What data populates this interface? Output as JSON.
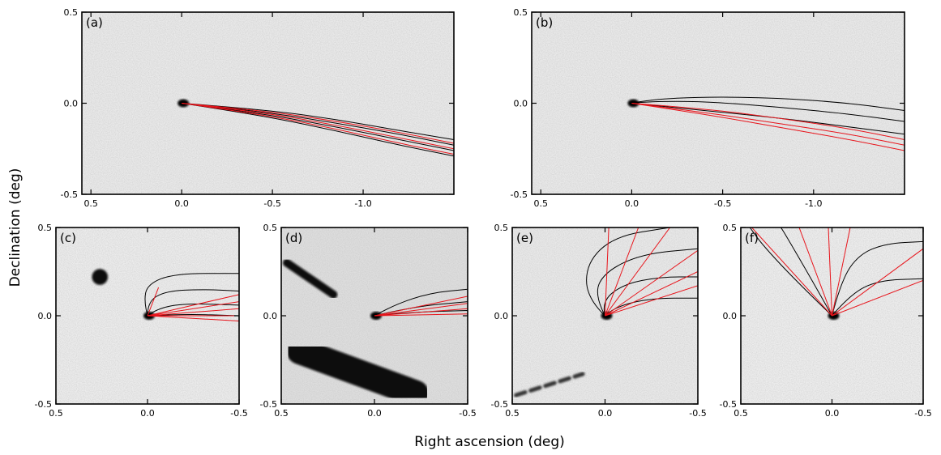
{
  "figure": {
    "xlabel": "Right ascension (deg)",
    "ylabel": "Declination (deg)"
  },
  "colors": {
    "syndyne": "#000000",
    "synchrone": "#e8141b",
    "background": "#e6e6e6",
    "nucleus": "#000000"
  },
  "chart_data": [
    {
      "panel": "(a)",
      "type": "line",
      "xlim": [
        0.55,
        -1.5
      ],
      "ylim": [
        -0.5,
        0.5
      ],
      "xticks": [
        0.5,
        0.0,
        -0.5,
        -1.0
      ],
      "xtick_labels": [
        "0.5",
        "0.0",
        "-0.5",
        "-1.0"
      ],
      "yticks": [
        0.5,
        0.0,
        -0.5
      ],
      "ytick_labels": [
        "0.5",
        "0.0",
        "-0.5"
      ],
      "syndynes": [
        [
          [
            0,
            0
          ],
          [
            -0.4,
            -0.03
          ],
          [
            -0.8,
            -0.08
          ],
          [
            -1.2,
            -0.15
          ],
          [
            -1.5,
            -0.2
          ]
        ],
        [
          [
            0,
            0
          ],
          [
            -0.4,
            -0.04
          ],
          [
            -0.8,
            -0.1
          ],
          [
            -1.2,
            -0.17
          ],
          [
            -1.5,
            -0.23
          ]
        ],
        [
          [
            0,
            0
          ],
          [
            -0.4,
            -0.05
          ],
          [
            -0.8,
            -0.12
          ],
          [
            -1.2,
            -0.2
          ],
          [
            -1.5,
            -0.26
          ]
        ],
        [
          [
            0,
            0
          ],
          [
            -0.4,
            -0.06
          ],
          [
            -0.8,
            -0.14
          ],
          [
            -1.2,
            -0.23
          ],
          [
            -1.5,
            -0.29
          ]
        ]
      ],
      "synchrones": [
        [
          [
            0,
            0
          ],
          [
            -0.4,
            -0.035
          ],
          [
            -0.8,
            -0.09
          ],
          [
            -1.2,
            -0.16
          ],
          [
            -1.5,
            -0.22
          ]
        ],
        [
          [
            0,
            0
          ],
          [
            -0.4,
            -0.045
          ],
          [
            -0.8,
            -0.11
          ],
          [
            -1.2,
            -0.19
          ],
          [
            -1.5,
            -0.25
          ]
        ],
        [
          [
            0,
            0
          ],
          [
            -0.4,
            -0.055
          ],
          [
            -0.8,
            -0.13
          ],
          [
            -1.2,
            -0.22
          ],
          [
            -1.5,
            -0.28
          ]
        ]
      ]
    },
    {
      "panel": "(b)",
      "type": "line",
      "xlim": [
        0.55,
        -1.5
      ],
      "ylim": [
        -0.5,
        0.5
      ],
      "xticks": [
        0.5,
        0.0,
        -0.5,
        -1.0
      ],
      "xtick_labels": [
        "0.5",
        "0.0",
        "-0.5",
        "-1.0"
      ],
      "yticks": [
        0.5,
        0.0,
        -0.5
      ],
      "ytick_labels": [
        "0.5",
        "0.0",
        "-0.5"
      ],
      "syndynes": [
        [
          [
            0,
            0
          ],
          [
            -0.1,
            0.02
          ],
          [
            -0.4,
            0.035
          ],
          [
            -0.8,
            0.03
          ],
          [
            -1.2,
            0.0
          ],
          [
            -1.5,
            -0.04
          ]
        ],
        [
          [
            0,
            0
          ],
          [
            -0.1,
            0.01
          ],
          [
            -0.4,
            0.01
          ],
          [
            -0.8,
            -0.02
          ],
          [
            -1.2,
            -0.06
          ],
          [
            -1.5,
            -0.1
          ]
        ],
        [
          [
            0,
            0
          ],
          [
            -0.3,
            -0.03
          ],
          [
            -0.8,
            -0.08
          ],
          [
            -1.2,
            -0.13
          ],
          [
            -1.5,
            -0.17
          ]
        ]
      ],
      "synchrones": [
        [
          [
            0,
            0
          ],
          [
            -0.4,
            -0.03
          ],
          [
            -0.8,
            -0.08
          ],
          [
            -1.2,
            -0.14
          ],
          [
            -1.5,
            -0.2
          ]
        ],
        [
          [
            0,
            0
          ],
          [
            -0.4,
            -0.05
          ],
          [
            -0.8,
            -0.11
          ],
          [
            -1.2,
            -0.17
          ],
          [
            -1.5,
            -0.23
          ]
        ],
        [
          [
            0,
            0
          ],
          [
            -0.4,
            -0.06
          ],
          [
            -0.8,
            -0.13
          ],
          [
            -1.2,
            -0.2
          ],
          [
            -1.5,
            -0.26
          ]
        ]
      ]
    },
    {
      "panel": "(c)",
      "type": "line",
      "xlim": [
        0.5,
        -0.5
      ],
      "ylim": [
        -0.5,
        0.5
      ],
      "xticks": [
        0.5,
        0.0,
        -0.5
      ],
      "xtick_labels": [
        "0.5",
        "0.0",
        "-0.5"
      ],
      "yticks": [
        0.5,
        0.0,
        -0.5
      ],
      "ytick_labels": [
        "0.5",
        "0.0",
        "-0.5"
      ],
      "syndynes": [
        [
          [
            0,
            0
          ],
          [
            0.02,
            0.08
          ],
          [
            0.0,
            0.18
          ],
          [
            -0.15,
            0.24
          ],
          [
            -0.5,
            0.24
          ]
        ],
        [
          [
            0,
            0
          ],
          [
            0.0,
            0.08
          ],
          [
            -0.1,
            0.14
          ],
          [
            -0.3,
            0.15
          ],
          [
            -0.5,
            0.14
          ]
        ],
        [
          [
            0,
            0
          ],
          [
            -0.05,
            0.04
          ],
          [
            -0.2,
            0.07
          ],
          [
            -0.5,
            0.06
          ]
        ],
        [
          [
            0,
            0
          ],
          [
            -0.2,
            0.01
          ],
          [
            -0.5,
            0.0
          ]
        ]
      ],
      "synchrones": [
        [
          [
            0,
            0
          ],
          [
            -0.06,
            0.16
          ]
        ],
        [
          [
            0,
            0
          ],
          [
            -0.5,
            0.12
          ]
        ],
        [
          [
            0,
            0
          ],
          [
            -0.5,
            0.08
          ]
        ],
        [
          [
            0,
            0
          ],
          [
            -0.5,
            0.04
          ]
        ],
        [
          [
            0,
            0
          ],
          [
            -0.5,
            0.0
          ]
        ],
        [
          [
            0,
            0
          ],
          [
            -0.5,
            -0.03
          ]
        ]
      ],
      "features": [
        {
          "kind": "blob",
          "x": 0.26,
          "y": 0.22,
          "r": 0.045
        }
      ]
    },
    {
      "panel": "(d)",
      "type": "line",
      "xlim": [
        0.5,
        -0.5
      ],
      "ylim": [
        -0.5,
        0.5
      ],
      "xticks": [
        0.5,
        0.0,
        -0.5
      ],
      "xtick_labels": [
        "0.5",
        "0.0",
        "-0.5"
      ],
      "yticks": [
        0.5,
        0.0,
        -0.5
      ],
      "ytick_labels": [
        "0.5",
        "0.0",
        "-0.5"
      ],
      "syndynes": [
        [
          [
            0,
            0
          ],
          [
            -0.1,
            0.06
          ],
          [
            -0.3,
            0.13
          ],
          [
            -0.5,
            0.15
          ]
        ],
        [
          [
            0,
            0
          ],
          [
            -0.2,
            0.05
          ],
          [
            -0.5,
            0.08
          ]
        ],
        [
          [
            0,
            0
          ],
          [
            -0.2,
            0.02
          ],
          [
            -0.5,
            0.03
          ]
        ]
      ],
      "synchrones": [
        [
          [
            0,
            0
          ],
          [
            -0.5,
            0.11
          ]
        ],
        [
          [
            0,
            0
          ],
          [
            -0.5,
            0.07
          ]
        ],
        [
          [
            0,
            0
          ],
          [
            -0.5,
            0.04
          ]
        ],
        [
          [
            0,
            0
          ],
          [
            -0.5,
            0.01
          ]
        ]
      ],
      "features": [
        {
          "kind": "streak",
          "x1": 0.47,
          "y1": 0.3,
          "x2": 0.22,
          "y2": 0.12,
          "w": 0.045
        },
        {
          "kind": "streak",
          "x1": 0.4,
          "y1": -0.2,
          "x2": -0.22,
          "y2": -0.44,
          "w": 0.15
        }
      ]
    },
    {
      "panel": "(e)",
      "type": "line",
      "xlim": [
        0.5,
        -0.5
      ],
      "ylim": [
        -0.5,
        0.5
      ],
      "xticks": [
        0.5,
        0.0,
        -0.5
      ],
      "xtick_labels": [
        "0.5",
        "0.0",
        "-0.5"
      ],
      "yticks": [
        0.5,
        0.0,
        -0.5
      ],
      "ytick_labels": [
        "0.5",
        "0.0",
        "-0.5"
      ],
      "syndynes": [
        [
          [
            0,
            0
          ],
          [
            0.1,
            0.1
          ],
          [
            0.1,
            0.3
          ],
          [
            -0.05,
            0.45
          ],
          [
            -0.35,
            0.5
          ]
        ],
        [
          [
            0,
            0
          ],
          [
            0.06,
            0.12
          ],
          [
            0.0,
            0.25
          ],
          [
            -0.2,
            0.35
          ],
          [
            -0.5,
            0.38
          ]
        ],
        [
          [
            0,
            0
          ],
          [
            0.02,
            0.08
          ],
          [
            -0.1,
            0.18
          ],
          [
            -0.3,
            0.22
          ],
          [
            -0.5,
            0.22
          ]
        ],
        [
          [
            0,
            0
          ],
          [
            -0.05,
            0.05
          ],
          [
            -0.25,
            0.1
          ],
          [
            -0.5,
            0.1
          ]
        ]
      ],
      "synchrones": [
        [
          [
            0,
            0
          ],
          [
            -0.02,
            0.5
          ]
        ],
        [
          [
            0,
            0
          ],
          [
            -0.18,
            0.5
          ]
        ],
        [
          [
            0,
            0
          ],
          [
            -0.35,
            0.5
          ]
        ],
        [
          [
            0,
            0
          ],
          [
            -0.5,
            0.37
          ]
        ],
        [
          [
            0,
            0
          ],
          [
            -0.5,
            0.25
          ]
        ],
        [
          [
            0,
            0
          ],
          [
            -0.5,
            0.17
          ]
        ]
      ],
      "features": [
        {
          "kind": "dashes",
          "x1": 0.48,
          "y1": -0.45,
          "x2": 0.12,
          "y2": -0.33
        }
      ]
    },
    {
      "panel": "(f)",
      "type": "line",
      "xlim": [
        0.5,
        -0.5
      ],
      "ylim": [
        -0.5,
        0.5
      ],
      "xticks": [
        0.5,
        0.0,
        -0.5
      ],
      "xtick_labels": [
        "0.5",
        "0.0",
        "-0.5"
      ],
      "yticks": [
        0.5,
        0.0,
        -0.5
      ],
      "ytick_labels": [
        "0.5",
        "0.0",
        "-0.5"
      ],
      "syndynes": [
        [
          [
            0,
            0
          ],
          [
            0.2,
            0.2
          ],
          [
            0.38,
            0.4
          ],
          [
            0.45,
            0.5
          ]
        ],
        [
          [
            0,
            0
          ],
          [
            0.12,
            0.22
          ],
          [
            0.25,
            0.45
          ],
          [
            0.28,
            0.5
          ]
        ],
        [
          [
            0,
            0
          ],
          [
            -0.05,
            0.2
          ],
          [
            -0.15,
            0.35
          ],
          [
            -0.3,
            0.41
          ],
          [
            -0.5,
            0.42
          ]
        ],
        [
          [
            0,
            0
          ],
          [
            -0.1,
            0.12
          ],
          [
            -0.25,
            0.2
          ],
          [
            -0.5,
            0.21
          ]
        ]
      ],
      "synchrones": [
        [
          [
            0,
            0
          ],
          [
            0.44,
            0.5
          ]
        ],
        [
          [
            0,
            0
          ],
          [
            0.18,
            0.5
          ]
        ],
        [
          [
            0,
            0
          ],
          [
            0.02,
            0.5
          ]
        ],
        [
          [
            0,
            0
          ],
          [
            -0.1,
            0.5
          ]
        ],
        [
          [
            0,
            0
          ],
          [
            -0.5,
            0.38
          ]
        ],
        [
          [
            0,
            0
          ],
          [
            -0.5,
            0.2
          ]
        ]
      ],
      "features": []
    }
  ]
}
